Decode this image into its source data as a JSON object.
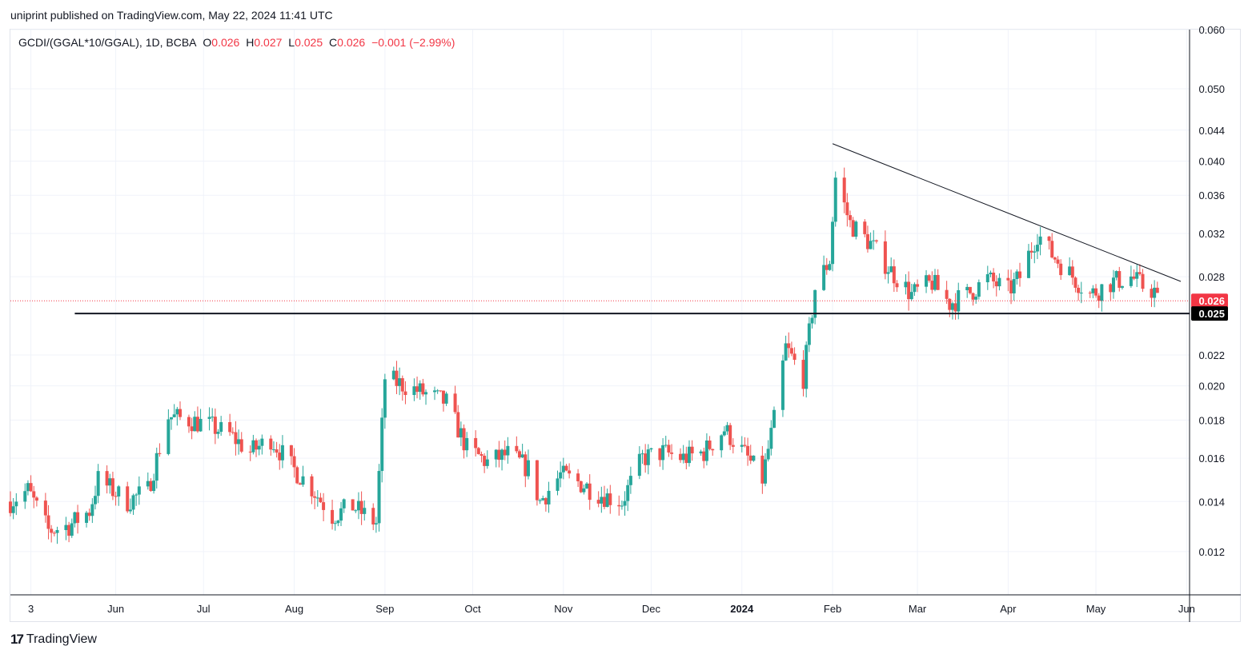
{
  "header": {
    "publisher_line": "uniprint published on TradingView.com, May 22, 2024 11:41 UTC"
  },
  "legend": {
    "symbol": "GCDI/(GGAL*10/GGAL), 1D, BCBA",
    "o_label": "O",
    "o_value": "0.026",
    "h_label": "H",
    "h_value": "0.027",
    "l_label": "L",
    "l_value": "0.025",
    "c_label": "C",
    "c_value": "0.026",
    "change": "−0.001 (−2.99%)"
  },
  "footer": {
    "brand": "TradingView",
    "logo_mark": "17"
  },
  "colors": {
    "up": "#26a69a",
    "down": "#ef5350",
    "grid": "#f0f3fa",
    "line": "#131722",
    "last_price_badge": "#f23645",
    "level_badge": "#000000"
  },
  "chart_data": {
    "type": "candlestick",
    "y_scale": "log",
    "ylim": [
      0.0105,
      0.06
    ],
    "y_ticks": [
      "0.060",
      "0.050",
      "0.044",
      "0.040",
      "0.036",
      "0.032",
      "0.028",
      "0.022",
      "0.020",
      "0.018",
      "0.016",
      "0.014",
      "0.012"
    ],
    "x_ticks": [
      {
        "date": "2023-05-03",
        "label": "3",
        "bold": false
      },
      {
        "date": "2023-06-01",
        "label": "Jun",
        "bold": false
      },
      {
        "date": "2023-07-01",
        "label": "Jul",
        "bold": false
      },
      {
        "date": "2023-08-01",
        "label": "Aug",
        "bold": false
      },
      {
        "date": "2023-09-01",
        "label": "Sep",
        "bold": false
      },
      {
        "date": "2023-10-01",
        "label": "Oct",
        "bold": false
      },
      {
        "date": "2023-11-01",
        "label": "Nov",
        "bold": false
      },
      {
        "date": "2023-12-01",
        "label": "Dec",
        "bold": false
      },
      {
        "date": "2024-01-01",
        "label": "2024",
        "bold": true
      },
      {
        "date": "2024-02-01",
        "label": "Feb",
        "bold": false
      },
      {
        "date": "2024-03-01",
        "label": "Mar",
        "bold": false
      },
      {
        "date": "2024-04-01",
        "label": "Apr",
        "bold": false
      },
      {
        "date": "2024-05-01",
        "label": "May",
        "bold": false
      },
      {
        "date": "2024-06-01",
        "label": "Jun",
        "bold": false
      }
    ],
    "x_range": [
      "2023-04-26",
      "2024-06-02"
    ],
    "last_price": {
      "value": 0.026,
      "label": "0.026"
    },
    "horizontal_level": {
      "value": 0.025,
      "label": "0.025",
      "start": "2023-05-18"
    },
    "trendline": [
      {
        "date": "2024-02-01",
        "value": 0.0422
      },
      {
        "date": "2024-05-30",
        "value": 0.0276
      }
    ],
    "anchors": [
      [
        "2023-04-26",
        0.014
      ],
      [
        "2023-05-02",
        0.0145
      ],
      [
        "2023-05-09",
        0.0128
      ],
      [
        "2023-05-16",
        0.013
      ],
      [
        "2023-05-23",
        0.0136
      ],
      [
        "2023-05-26",
        0.015
      ],
      [
        "2023-06-05",
        0.014
      ],
      [
        "2023-06-12",
        0.0145
      ],
      [
        "2023-06-19",
        0.0182
      ],
      [
        "2023-06-26",
        0.018
      ],
      [
        "2023-07-03",
        0.0177
      ],
      [
        "2023-07-10",
        0.0172
      ],
      [
        "2023-07-17",
        0.0163
      ],
      [
        "2023-07-24",
        0.017
      ],
      [
        "2023-07-31",
        0.0156
      ],
      [
        "2023-08-07",
        0.0146
      ],
      [
        "2023-08-14",
        0.0134
      ],
      [
        "2023-08-21",
        0.0138
      ],
      [
        "2023-08-29",
        0.0131
      ],
      [
        "2023-09-01",
        0.0205
      ],
      [
        "2023-09-08",
        0.02
      ],
      [
        "2023-09-15",
        0.0195
      ],
      [
        "2023-09-22",
        0.019
      ],
      [
        "2023-09-29",
        0.0165
      ],
      [
        "2023-10-06",
        0.0158
      ],
      [
        "2023-10-13",
        0.0162
      ],
      [
        "2023-10-20",
        0.0155
      ],
      [
        "2023-10-24",
        0.014
      ],
      [
        "2023-10-31",
        0.0152
      ],
      [
        "2023-11-07",
        0.0148
      ],
      [
        "2023-11-14",
        0.0143
      ],
      [
        "2023-11-21",
        0.014
      ],
      [
        "2023-11-28",
        0.016
      ],
      [
        "2023-12-05",
        0.0163
      ],
      [
        "2023-12-12",
        0.016
      ],
      [
        "2023-12-19",
        0.0163
      ],
      [
        "2023-12-26",
        0.0175
      ],
      [
        "2024-01-02",
        0.0162
      ],
      [
        "2024-01-08",
        0.015
      ],
      [
        "2024-01-12",
        0.018
      ],
      [
        "2024-01-16",
        0.0225
      ],
      [
        "2024-01-22",
        0.0205
      ],
      [
        "2024-01-26",
        0.027
      ],
      [
        "2024-01-31",
        0.0295
      ],
      [
        "2024-02-02",
        0.038
      ],
      [
        "2024-02-07",
        0.033
      ],
      [
        "2024-02-14",
        0.031
      ],
      [
        "2024-02-21",
        0.0285
      ],
      [
        "2024-02-28",
        0.0265
      ],
      [
        "2024-03-06",
        0.0275
      ],
      [
        "2024-03-12",
        0.0258
      ],
      [
        "2024-03-18",
        0.0265
      ],
      [
        "2024-03-25",
        0.0278
      ],
      [
        "2024-04-01",
        0.0268
      ],
      [
        "2024-04-05",
        0.028
      ],
      [
        "2024-04-11",
        0.032
      ],
      [
        "2024-04-16",
        0.03
      ],
      [
        "2024-04-22",
        0.0283
      ],
      [
        "2024-04-29",
        0.0265
      ],
      [
        "2024-05-06",
        0.0275
      ],
      [
        "2024-05-13",
        0.028
      ],
      [
        "2024-05-17",
        0.0272
      ],
      [
        "2024-05-21",
        0.0268
      ],
      [
        "2024-05-22",
        0.026
      ]
    ]
  }
}
